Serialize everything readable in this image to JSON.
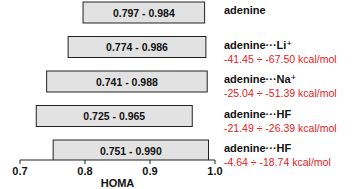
{
  "chart_data": {
    "type": "bar",
    "orientation": "horizontal",
    "categories": [
      "adenine",
      "adenine···Li⁺",
      "adenine···Na⁺",
      "adenine···HF",
      "adenine···HF"
    ],
    "low": [
      0.797,
      0.774,
      0.741,
      0.725,
      0.751
    ],
    "values": [
      0.984,
      0.986,
      0.988,
      0.965,
      0.99
    ],
    "value_labels": [
      "0.797 - 0.984",
      "0.774 - 0.986",
      "0.741 - 0.988",
      "0.725 - 0.965",
      "0.751 - 0.990"
    ],
    "data_labels": true,
    "annotations": [
      null,
      "-41.45 ÷ -67.50 kcal/mol",
      "-25.04 ÷ -51.39 kcal/mol",
      "-21.49 ÷ -26.39 kcal/mol",
      "-4.64 ÷ -18.74 kcal/mol"
    ],
    "annotation_color": "#e8191b",
    "color": "#e2e2e2",
    "x_label": "HOMA",
    "xlim": [
      0.7,
      1.0
    ],
    "xticks": [
      0.7,
      0.8,
      0.9,
      {
        "value": 1.0,
        "label": "1.0"
      }
    ],
    "grid": false
  }
}
